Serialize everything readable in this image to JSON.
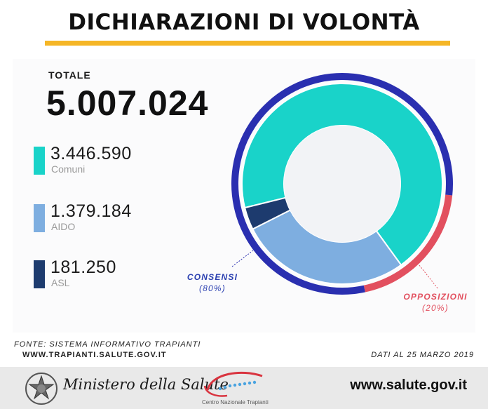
{
  "header": {
    "title": "DICHIARAZIONI DI VOLONTÀ"
  },
  "total": {
    "label": "TOTALE",
    "value": "5.007.024"
  },
  "legend": [
    {
      "value": "3.446.590",
      "label": "Comuni",
      "color": "#19d3c9"
    },
    {
      "value": "1.379.184",
      "label": "AIDO",
      "color": "#7eaee0"
    },
    {
      "value": "181.250",
      "label": "ASL",
      "color": "#1d3b6e"
    }
  ],
  "annotations": {
    "consensi": {
      "label": "CONSENSI",
      "pct": "(80%)",
      "color": "#2a3fb0"
    },
    "opposizioni": {
      "label": "OPPOSIZIONI",
      "pct": "(20%)",
      "color": "#e2505f"
    }
  },
  "chart_data": {
    "type": "pie",
    "title": "DICHIARAZIONI DI VOLONTÀ",
    "inner_ring": {
      "categories": [
        "Comuni",
        "AIDO",
        "ASL"
      ],
      "values": [
        3446590,
        1379184,
        181250
      ],
      "colors": [
        "#19d3c9",
        "#7eaee0",
        "#1d3b6e"
      ]
    },
    "outer_ring": {
      "categories": [
        "CONSENSI",
        "OPPOSIZIONI"
      ],
      "values": [
        80,
        20
      ],
      "colors": [
        "#2a2fb0",
        "#e2505f"
      ]
    },
    "total": 5007024
  },
  "footer": {
    "source": "FONTE: SISTEMA INFORMATIVO TRAPIANTI",
    "url": "WWW.TRAPIANTI.SALUTE.GOV.IT",
    "date": "DATI AL 25 MARZO 2019",
    "ministry": "Ministero della Salute",
    "cnt": "Centro Nazionale Trapianti",
    "site": "www.salute.gov.it"
  }
}
